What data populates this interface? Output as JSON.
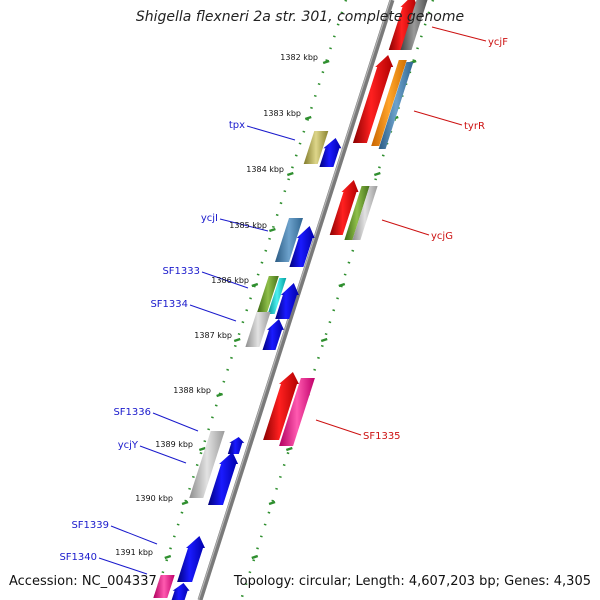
{
  "title": "Shigella flexneri 2a str. 301, complete genome",
  "footer": {
    "accession": "Accession: NC_004337",
    "info": "Topology: circular; Length: 4,607,203 bp; Genes: 4,305"
  },
  "colors": {
    "backbone": "#7a7a7a",
    "tick": "#2f8f2f",
    "label_forward": "#1a1acc",
    "label_reverse": "#cc1111"
  },
  "ruler": [
    {
      "label": "1382 kbp"
    },
    {
      "label": "1383 kbp"
    },
    {
      "label": "1384 kbp"
    },
    {
      "label": "1385 kbp"
    },
    {
      "label": "1386 kbp"
    },
    {
      "label": "1387 kbp"
    },
    {
      "label": "1388 kbp"
    },
    {
      "label": "1389 kbp"
    },
    {
      "label": "1390 kbp"
    },
    {
      "label": "1391 kbp"
    }
  ],
  "gene_labels": {
    "forward": [
      "tpx",
      "ycjI",
      "SF1333",
      "SF1334",
      "SF1336",
      "ycjY",
      "SF1339",
      "SF1340"
    ],
    "reverse": [
      "ycjF",
      "tyrR",
      "ycjG",
      "SF1335"
    ]
  }
}
